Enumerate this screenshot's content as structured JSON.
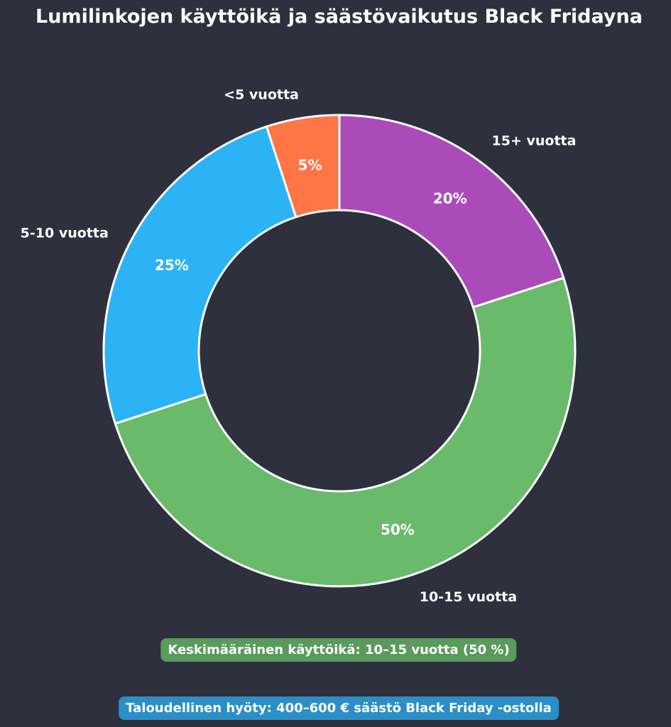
{
  "title": "Lumilinkojen käyttöikä ja säästövaikutus Black Fridayna",
  "chart_data": {
    "type": "pie",
    "subtype": "donut",
    "categories": [
      "15+ vuotta",
      "10-15 vuotta",
      "5-10 vuotta",
      "<5 vuotta"
    ],
    "values": [
      20,
      50,
      25,
      5
    ],
    "value_labels": [
      "20%",
      "50%",
      "25%",
      "5%"
    ],
    "colors": [
      "#ab4bba",
      "#6aba6c",
      "#2cb3f5",
      "#ff7546"
    ],
    "start_angle_deg": 90,
    "direction": "clockwise",
    "legend": "none",
    "edge_color": "#ffffff"
  },
  "annotations": {
    "average_lifespan": "Keskimääräinen käyttöikä: 10–15 vuotta (50 %)",
    "economic_benefit": "Taloudellinen hyöty: 400–600 € säästö Black Friday -ostolla"
  },
  "colors": {
    "background": "#2e303e",
    "average_badge": "#5a9a5c",
    "benefit_badge": "#2b8fc7"
  }
}
